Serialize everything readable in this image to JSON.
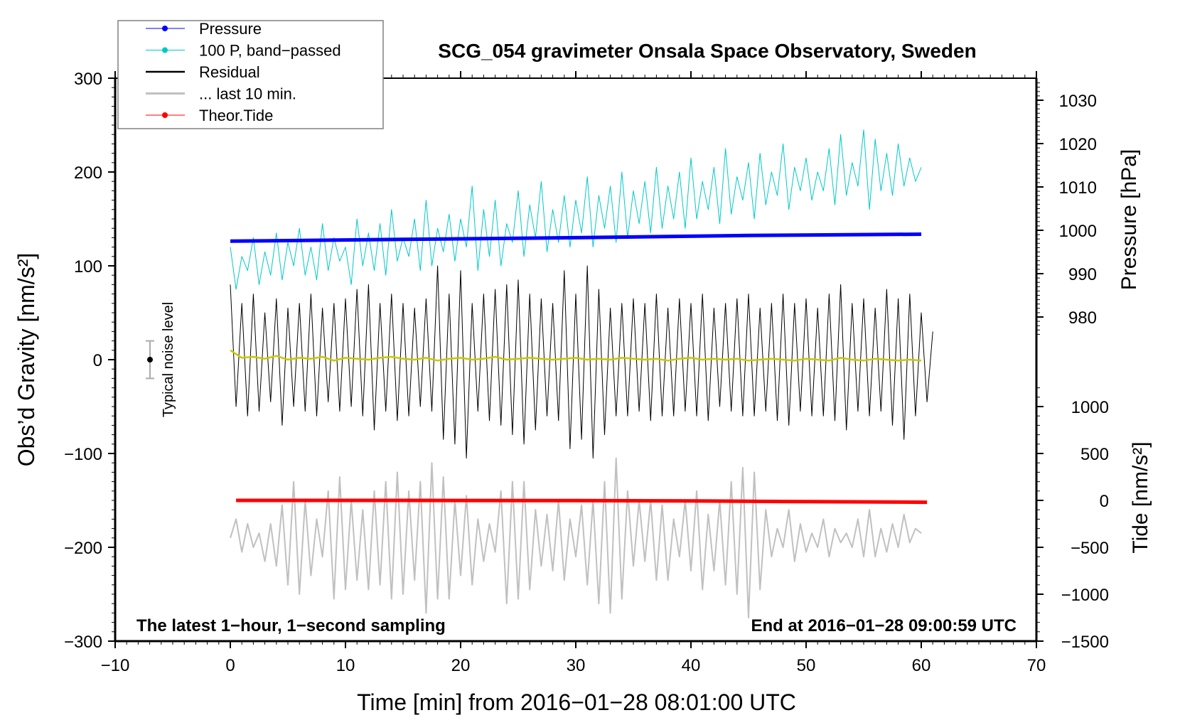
{
  "chart_data": {
    "type": "line",
    "title": "SCG_054 gravimeter Onsala Space Observatory, Sweden",
    "xlabel": "Time [min] from 2016−01−28 08:01:00 UTC",
    "ylabel": "Obs’d Gravity [nm/s²]",
    "ylabel_right_top": "Pressure [hPa]",
    "ylabel_right_bottom": "Tide [nm/s²]",
    "xlim": [
      -10,
      70
    ],
    "ylim": [
      -300,
      300
    ],
    "pressure_lim": [
      980,
      1030
    ],
    "tide_lim": [
      -1500,
      1000
    ],
    "x_ticks": [
      "−10",
      "0",
      "10",
      "20",
      "30",
      "40",
      "50",
      "60",
      "70"
    ],
    "x_tick_values": [
      -10,
      0,
      10,
      20,
      30,
      40,
      50,
      60,
      70
    ],
    "y_ticks": [
      "300",
      "200",
      "100",
      "0",
      "−100",
      "−200",
      "−300"
    ],
    "y_tick_values": [
      300,
      200,
      100,
      0,
      -100,
      -200,
      -300
    ],
    "pressure_ticks": [
      "1030",
      "1020",
      "1010",
      "1000",
      "990",
      "980"
    ],
    "pressure_tick_values": [
      1030,
      1020,
      1010,
      1000,
      990,
      980
    ],
    "tide_ticks": [
      "1000",
      "500",
      "0",
      "−500",
      "−1000",
      "−1500"
    ],
    "tide_tick_values": [
      1000,
      500,
      0,
      -500,
      -1000,
      -1500
    ],
    "annotations": {
      "bottom_left": "The latest 1−hour, 1−second sampling",
      "bottom_right": "End at 2016−01−28 09:00:59 UTC",
      "noise_label": "Typical noise level",
      "noise_level": 20
    },
    "legend_position": "top-left",
    "legend": [
      {
        "label": "Pressure",
        "color": "#0000ff",
        "marker": true
      },
      {
        "label": "100 P, band−passed",
        "color": "#00c8c8",
        "marker": true
      },
      {
        "label": "Residual",
        "color": "#000000",
        "marker": false
      },
      {
        "label": "... last 10 min.",
        "color": "#c0c0c0",
        "marker": false
      },
      {
        "label": "Theor.Tide",
        "color": "#ff0000",
        "marker": true
      }
    ],
    "series": [
      {
        "id": "pressure",
        "axis": "pressure",
        "color": "#0000ff",
        "x": [
          0,
          15,
          30,
          45,
          60
        ],
        "values": [
          997.5,
          997.9,
          998.3,
          998.8,
          999.1
        ]
      },
      {
        "id": "pressure_bandpassed",
        "axis": "gravity",
        "color": "#00c8c8",
        "x_start": 0,
        "x_step": 0.5,
        "values": [
          120,
          75,
          110,
          95,
          130,
          80,
          115,
          90,
          135,
          85,
          125,
          100,
          140,
          90,
          120,
          85,
          145,
          95,
          130,
          105,
          120,
          80,
          150,
          100,
          135,
          95,
          145,
          90,
          160,
          105,
          130,
          110,
          150,
          95,
          170,
          100,
          140,
          115,
          155,
          105,
          150,
          120,
          185,
          95,
          160,
          110,
          170,
          100,
          145,
          125,
          180,
          110,
          165,
          130,
          190,
          115,
          160,
          125,
          175,
          120,
          170,
          135,
          195,
          120,
          175,
          140,
          185,
          125,
          200,
          130,
          180,
          145,
          190,
          135,
          205,
          140,
          185,
          150,
          200,
          140,
          215,
          150,
          190,
          160,
          205,
          145,
          225,
          155,
          195,
          170,
          210,
          150,
          220,
          165,
          200,
          175,
          230,
          160,
          205,
          180,
          215,
          170,
          200,
          180,
          225,
          165,
          240,
          175,
          210,
          185,
          245,
          160,
          235,
          180,
          220,
          175,
          230,
          185,
          215,
          190,
          205
        ]
      },
      {
        "id": "residual",
        "axis": "gravity",
        "color": "#000000",
        "x_start": 0,
        "x_step": 0.5,
        "values": [
          80,
          -50,
          60,
          -60,
          70,
          -55,
          50,
          -45,
          65,
          -70,
          55,
          -50,
          60,
          -55,
          70,
          -60,
          55,
          -45,
          60,
          -55,
          65,
          -50,
          75,
          -60,
          80,
          -75,
          60,
          -55,
          70,
          -65,
          60,
          -60,
          55,
          -50,
          65,
          -55,
          100,
          -85,
          70,
          -90,
          95,
          -105,
          60,
          -55,
          70,
          -65,
          75,
          -70,
          80,
          -80,
          85,
          -90,
          70,
          -75,
          65,
          -60,
          60,
          -65,
          95,
          -95,
          70,
          -85,
          100,
          -105,
          75,
          -80,
          55,
          -60,
          60,
          -60,
          65,
          -55,
          60,
          -65,
          70,
          -60,
          55,
          -60,
          65,
          -55,
          60,
          -60,
          70,
          -65,
          55,
          -50,
          60,
          -55,
          65,
          -60,
          70,
          -60,
          55,
          -55,
          60,
          -65,
          70,
          -70,
          60,
          -55,
          65,
          -60,
          55,
          -60,
          70,
          -65,
          80,
          -75,
          60,
          -55,
          65,
          -60,
          55,
          -55,
          75,
          -70,
          65,
          -85,
          70,
          -60,
          50,
          -45,
          30
        ]
      },
      {
        "id": "residual_smoothed",
        "axis": "gravity",
        "color": "#c8c800",
        "x_start": 0,
        "x_step": 1,
        "values": [
          10,
          2,
          3,
          1,
          4,
          0,
          2,
          1,
          3,
          -1,
          2,
          1,
          0,
          2,
          3,
          1,
          0,
          2,
          -1,
          1,
          2,
          0,
          1,
          3,
          0,
          1,
          2,
          1,
          0,
          1,
          2,
          0,
          1,
          0,
          2,
          1,
          0,
          1,
          -1,
          1,
          2,
          0,
          1,
          0,
          1,
          -1,
          0,
          1,
          0,
          -1,
          1,
          0,
          -1,
          2,
          0,
          -1,
          1,
          0,
          -1,
          0,
          -1
        ]
      },
      {
        "id": "last_10_min",
        "axis": "gravity",
        "color": "#c0c0c0",
        "x_start": 0,
        "x_step": 0.5,
        "values": [
          -190,
          -170,
          -205,
          -175,
          -200,
          -185,
          -215,
          -175,
          -220,
          -155,
          -240,
          -130,
          -250,
          -150,
          -230,
          -170,
          -210,
          -140,
          -255,
          -125,
          -245,
          -150,
          -235,
          -160,
          -245,
          -140,
          -240,
          -130,
          -255,
          -120,
          -250,
          -140,
          -235,
          -130,
          -270,
          -110,
          -255,
          -125,
          -255,
          -150,
          -230,
          -145,
          -240,
          -170,
          -215,
          -175,
          -205,
          -140,
          -260,
          -130,
          -255,
          -130,
          -245,
          -160,
          -220,
          -165,
          -225,
          -150,
          -235,
          -170,
          -210,
          -155,
          -240,
          -150,
          -260,
          -130,
          -270,
          -105,
          -255,
          -140,
          -220,
          -150,
          -215,
          -150,
          -235,
          -155,
          -235,
          -170,
          -210,
          -150,
          -225,
          -140,
          -245,
          -165,
          -225,
          -150,
          -240,
          -130,
          -250,
          -115,
          -275,
          -120,
          -245,
          -160,
          -210,
          -180,
          -200,
          -160,
          -215,
          -175,
          -205,
          -185,
          -200,
          -170,
          -210,
          -180,
          -195,
          -185,
          -200,
          -170,
          -210,
          -160,
          -210,
          -180,
          -205,
          -175,
          -200,
          -165,
          -195,
          -180,
          -185
        ]
      },
      {
        "id": "theoretical_tide",
        "axis": "tide",
        "color": "#ff0000",
        "x": [
          0.5,
          15,
          30,
          40,
          48,
          60.5
        ],
        "values": [
          0,
          0,
          -2,
          -5,
          -12,
          -20
        ]
      }
    ]
  }
}
